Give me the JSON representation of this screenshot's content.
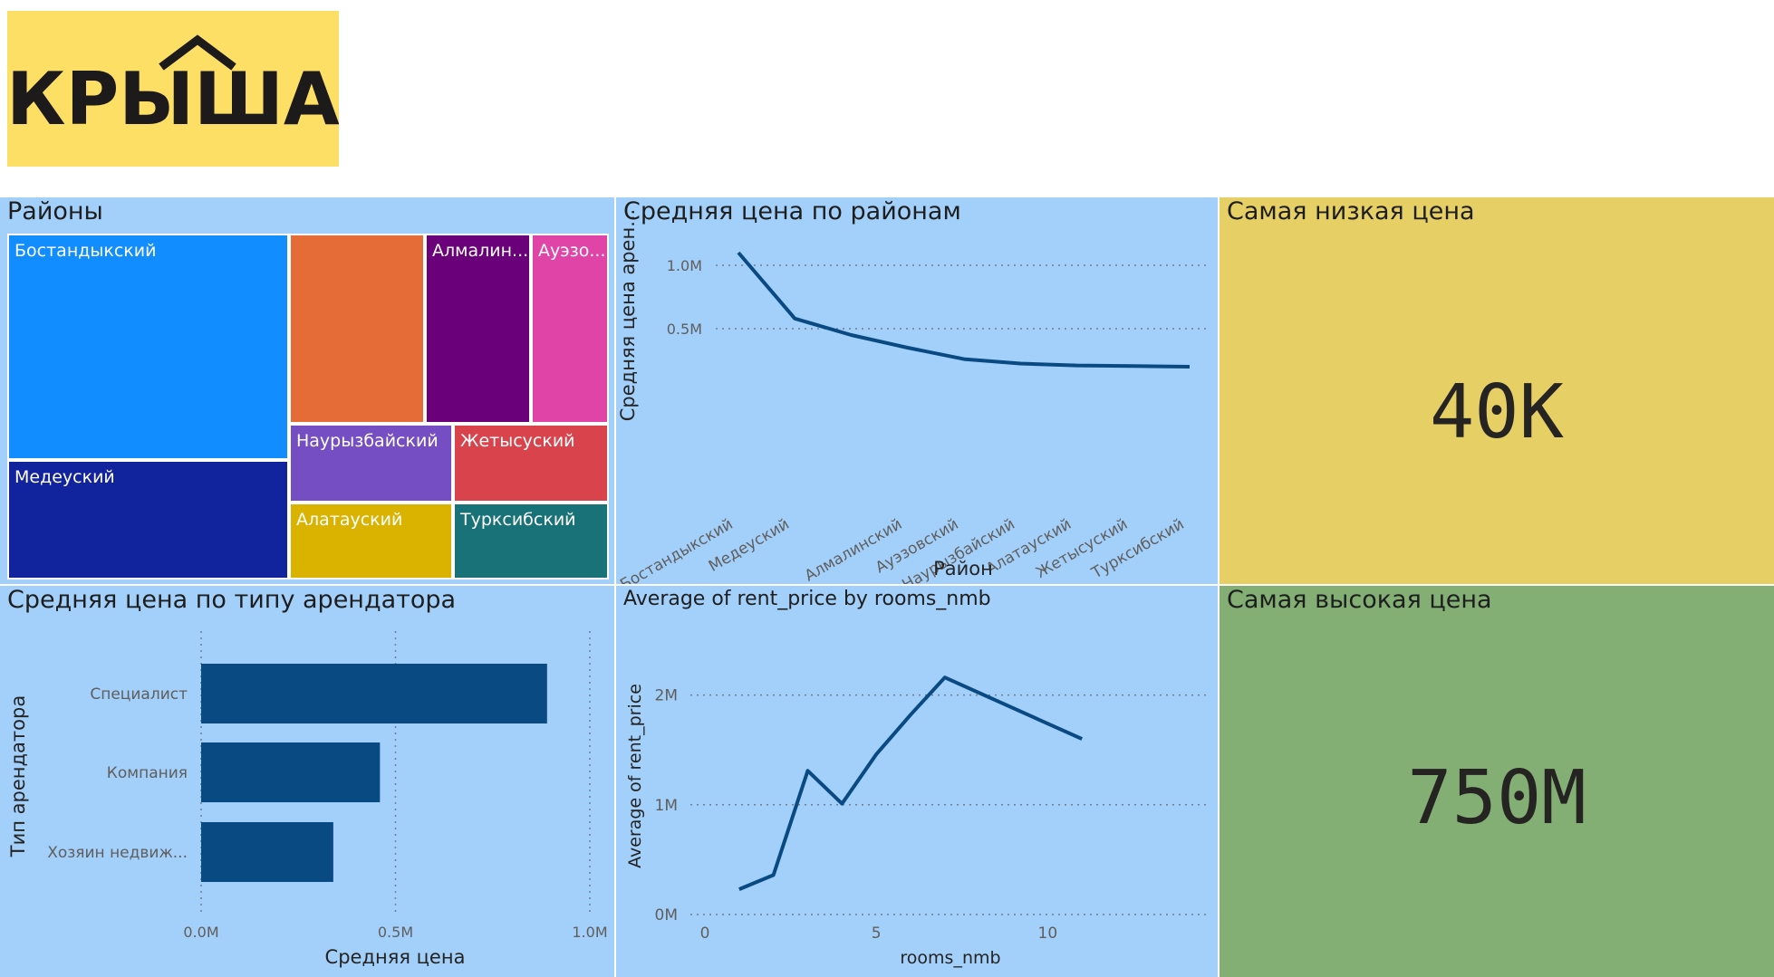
{
  "logo": {
    "text": "КРЫША",
    "bg": "#fedf66"
  },
  "treemap": {
    "title": "Районы",
    "cells": [
      {
        "label": "Бостандыкский",
        "color": "#118dff"
      },
      {
        "label": "Медеуский",
        "color": "#12239e"
      },
      {
        "label": "",
        "color": "#e66c37"
      },
      {
        "label": "Алмалин...",
        "color": "#6b007b"
      },
      {
        "label": "Ауэзо...",
        "color": "#e044a7"
      },
      {
        "label": "Наурызбайский",
        "color": "#744ec2"
      },
      {
        "label": "Жетысуский",
        "color": "#d9444c"
      },
      {
        "label": "Алатауский",
        "color": "#d9b300"
      },
      {
        "label": "Турксибский",
        "color": "#197278"
      }
    ]
  },
  "kpi_low": {
    "title": "Самая низкая цена",
    "value": "40K",
    "bg": "#e6cf65"
  },
  "kpi_high": {
    "title": "Самая высокая цена",
    "value": "750M",
    "bg": "#83af75"
  },
  "chart_data": [
    {
      "type": "line",
      "title": "Средняя цена по районам",
      "xlabel": "Район",
      "ylabel": "Средняя цена арен...",
      "categories": [
        "Бостандыкский",
        "Медеуский",
        "",
        "Алмалинский",
        "Ауэзовский",
        "Наурызбайский",
        "Алатауский",
        "Жетысуский",
        "Турксибский"
      ],
      "values": [
        1.1,
        0.58,
        0.45,
        0.35,
        0.26,
        0.225,
        0.21,
        0.205,
        0.2
      ],
      "yticks": [
        {
          "v": 1.0,
          "label": "1.0M"
        },
        {
          "v": 0.5,
          "label": "0.5M"
        }
      ],
      "ylim": [
        0,
        1.25
      ],
      "color": "#0a4a82"
    },
    {
      "type": "bar",
      "orientation": "horizontal",
      "title": "Средняя цена по типу арендатора",
      "xlabel": "Средняя цена",
      "ylabel": "Тип арендатора",
      "categories": [
        "Специалист",
        "Компания",
        "Хозяин недвиж..."
      ],
      "values": [
        0.89,
        0.46,
        0.34
      ],
      "xticks": [
        {
          "v": 0,
          "label": "0.0M"
        },
        {
          "v": 0.5,
          "label": "0.5M"
        },
        {
          "v": 1.0,
          "label": "1.0M"
        }
      ],
      "xlim": [
        0,
        1.0
      ],
      "color": "#0a4a82"
    },
    {
      "type": "line",
      "title": "Average of rent_price by rooms_nmb",
      "xlabel": "rooms_nmb",
      "ylabel": "Average of rent_price",
      "x": [
        1,
        2,
        3,
        4,
        5,
        6,
        7,
        11
      ],
      "y": [
        0.23,
        0.36,
        1.31,
        1.01,
        1.46,
        1.82,
        2.16,
        1.6
      ],
      "xticks": [
        {
          "v": 0,
          "label": "0"
        },
        {
          "v": 5,
          "label": "5"
        },
        {
          "v": 10,
          "label": "10"
        }
      ],
      "yticks": [
        {
          "v": 0,
          "label": "0M"
        },
        {
          "v": 1,
          "label": "1M"
        },
        {
          "v": 2,
          "label": "2M"
        }
      ],
      "xlim": [
        0,
        12
      ],
      "ylim": [
        0,
        2.5
      ],
      "color": "#0a4a82"
    }
  ]
}
